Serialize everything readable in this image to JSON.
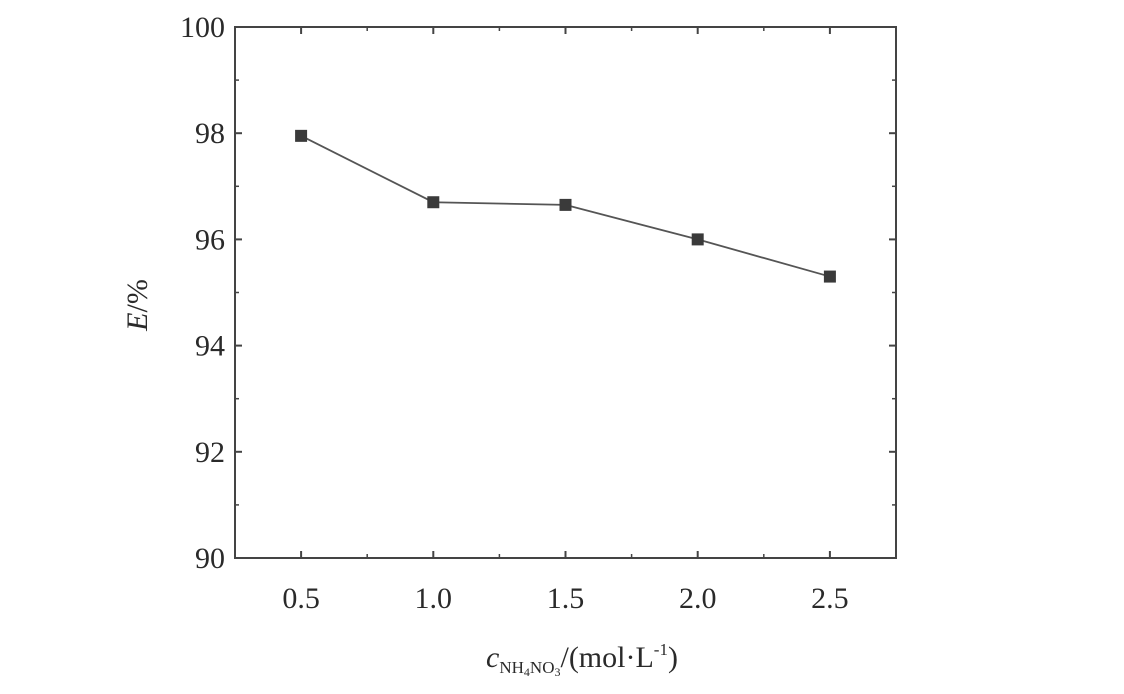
{
  "chart_data": {
    "type": "line",
    "x": [
      0.5,
      1.0,
      1.5,
      2.0,
      2.5
    ],
    "x_tick_labels": [
      "0.5",
      "1.0",
      "1.5",
      "2.0",
      "2.5"
    ],
    "series": [
      {
        "values": [
          97.95,
          96.7,
          96.65,
          96.0,
          95.3
        ]
      }
    ],
    "xlim": [
      0.25,
      2.75
    ],
    "ylim": [
      90,
      100
    ],
    "y_ticks": [
      90,
      92,
      94,
      96,
      98,
      100
    ],
    "y_tick_labels": [
      "90",
      "92",
      "94",
      "96",
      "98",
      "100"
    ],
    "xlabel": {
      "main": "c",
      "sub_pre": "NH",
      "sub_4": "4",
      "sub_mid": "NO",
      "sub_3": "3",
      "unit": "/(mol·L",
      "exp": "-1",
      "close": ")"
    },
    "ylabel": {
      "main": "E",
      "unit": "/%"
    },
    "grid": false,
    "marker": "square",
    "line_color": "#555555",
    "marker_color": "#3a3a3a"
  }
}
